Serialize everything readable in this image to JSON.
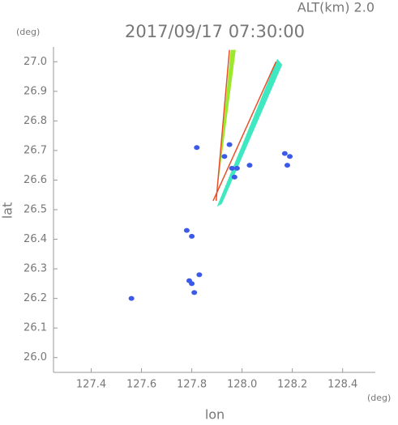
{
  "chart_data": {
    "type": "scatter",
    "title": "2017/09/17 07:30:00",
    "subtitle": "ALT(km) 2.0",
    "y_unit": "(deg)",
    "x_unit": "(deg)",
    "x_label": "lon",
    "y_label": "lat",
    "xlim": [
      127.25,
      128.53
    ],
    "ylim": [
      25.95,
      27.05
    ],
    "xticks": [
      127.4,
      127.6,
      127.8,
      {
        "value": 128.0,
        "label": "128.0"
      },
      128.2,
      128.4
    ],
    "yticks": [
      {
        "value": 26.0,
        "label": "26.0"
      },
      26.1,
      26.2,
      26.3,
      26.4,
      26.5,
      26.6,
      26.7,
      26.8,
      26.9,
      {
        "value": 27.0,
        "label": "27.0"
      }
    ],
    "series": [
      {
        "type": "area",
        "color": "#9be82c",
        "x": [
          127.897,
          127.955,
          127.975,
          127.905
        ],
        "y": [
          26.53,
          27.04,
          27.04,
          26.59
        ]
      },
      {
        "type": "line",
        "color": "#e8502a",
        "x": [
          127.897,
          127.95
        ],
        "y": [
          26.53,
          27.04
        ]
      },
      {
        "type": "area",
        "color": "#3fe8c0",
        "x": [
          127.9,
          128.14,
          128.16,
          127.92
        ],
        "y": [
          26.51,
          27.01,
          26.99,
          26.52
        ]
      },
      {
        "type": "line",
        "color": "#e8502a",
        "x": [
          127.885,
          128.135
        ],
        "y": [
          26.53,
          27.0
        ]
      },
      {
        "type": "scatter",
        "color": "#3c5ae8",
        "x": [
          127.56,
          127.78,
          127.8,
          127.8,
          127.81,
          127.79,
          127.83,
          127.82,
          128.17,
          128.19,
          128.18,
          127.96,
          127.98,
          127.97,
          128.03,
          127.93,
          127.95
        ],
        "y": [
          26.2,
          26.43,
          26.41,
          26.25,
          26.22,
          26.26,
          26.28,
          26.71,
          26.69,
          26.68,
          26.65,
          26.64,
          26.64,
          26.61,
          26.65,
          26.68,
          26.72
        ]
      }
    ]
  }
}
